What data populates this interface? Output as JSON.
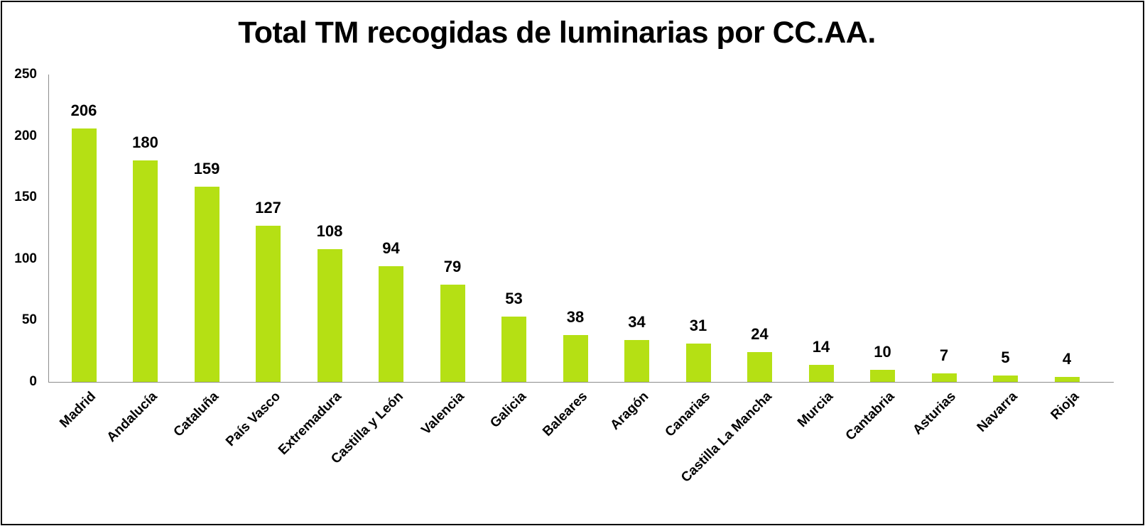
{
  "chart_data": {
    "type": "bar",
    "title": "Total TM recogidas de luminarias por CC.AA.",
    "xlabel": "",
    "ylabel": "",
    "ylim": [
      0,
      250
    ],
    "yticks": [
      "0",
      "50",
      "100",
      "150",
      "200",
      "250"
    ],
    "grid": false,
    "legend": null,
    "bar_color": "#b5e014",
    "categories": [
      "Madrid",
      "Andalucía",
      "Cataluña",
      "País Vasco",
      "Extremadura",
      "Castilla y León",
      "Valencia",
      "Galicia",
      "Baleares",
      "Aragón",
      "Canarias",
      "Castilla La Mancha",
      "Murcia",
      "Cantabria",
      "Asturias",
      "Navarra",
      "Rioja"
    ],
    "values": [
      206,
      180,
      159,
      127,
      108,
      94,
      79,
      53,
      38,
      34,
      31,
      24,
      14,
      10,
      7,
      5,
      4
    ],
    "value_labels": [
      "206",
      "180",
      "159",
      "127",
      "108",
      "94",
      "79",
      "53",
      "38",
      "34",
      "31",
      "24",
      "14",
      "10",
      "7",
      "5",
      "4"
    ]
  }
}
